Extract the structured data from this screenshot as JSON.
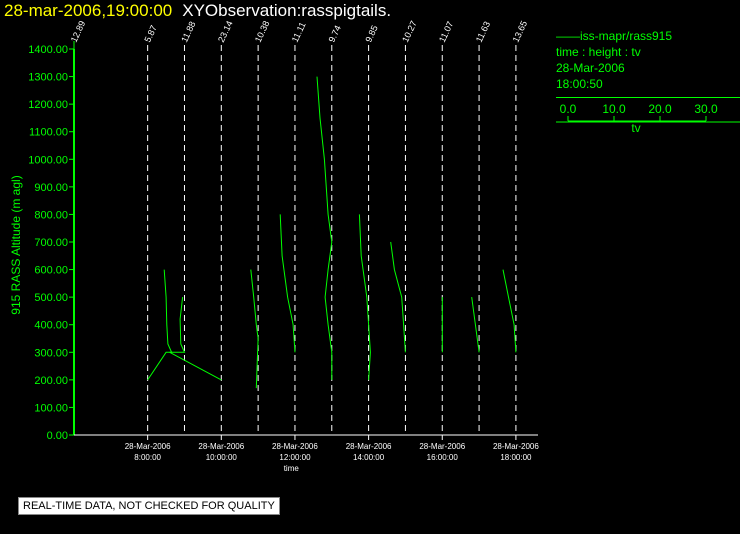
{
  "header": {
    "timestamp": "28-mar-2006,19:00:00",
    "name": "XYObservation:rasspigtails."
  },
  "legend": {
    "series_label": "iss-mapr/rass915",
    "line1": "time : height : tv",
    "line2": "28-Mar-2006",
    "line3": "18:00:50",
    "scale_ticks": [
      "0.0",
      "10.0",
      "20.0",
      "30.0"
    ],
    "scale_label": "tv",
    "color": "#00ff00"
  },
  "disclaimer": "REAL-TIME DATA, NOT CHECKED FOR QUALITY",
  "chart_data": {
    "type": "line",
    "ylabel": "915 RASS Altitude (m agl)",
    "xlabel": "time",
    "ylim": [
      0,
      1400
    ],
    "yticks": [
      "0.00",
      "100.00",
      "200.00",
      "300.00",
      "400.00",
      "500.00",
      "600.00",
      "700.00",
      "800.00",
      "900.00",
      "1000.00",
      "1100.00",
      "1200.00",
      "1300.00",
      "1400.00"
    ],
    "xlim_hours": [
      6.0,
      18.6
    ],
    "xticks": [
      {
        "hour": 8,
        "date": "28-Mar-2006",
        "time": "8:00:00"
      },
      {
        "hour": 10,
        "date": "28-Mar-2006",
        "time": "10:00:00"
      },
      {
        "hour": 12,
        "date": "28-Mar-2006",
        "time": "12:00:00"
      },
      {
        "hour": 14,
        "date": "28-Mar-2006",
        "time": "14:00:00"
      },
      {
        "hour": 16,
        "date": "28-Mar-2006",
        "time": "16:00:00"
      },
      {
        "hour": 18,
        "date": "28-Mar-2006",
        "time": "18:00:00"
      }
    ],
    "profiles": [
      {
        "hour": 6.0,
        "label": "12.89",
        "points": [
          [
            6.0,
            0
          ],
          [
            6.0,
            1400
          ]
        ]
      },
      {
        "hour": 8.0,
        "label": "5.87",
        "points": [
          [
            8.45,
            600
          ],
          [
            8.5,
            500
          ],
          [
            8.52,
            400
          ],
          [
            8.55,
            330
          ],
          [
            8.65,
            300
          ],
          [
            8.5,
            300
          ],
          [
            8.0,
            200
          ],
          [
            8.0,
            200
          ]
        ]
      },
      {
        "hour": 9.0,
        "label": "11.88",
        "points": [
          [
            8.95,
            500
          ],
          [
            8.88,
            420
          ],
          [
            8.9,
            330
          ],
          [
            9.0,
            300
          ],
          [
            8.6,
            300
          ],
          [
            10.0,
            200
          ]
        ]
      },
      {
        "hour": 10.0,
        "label": "23.14",
        "points": [
          [
            10.0,
            200
          ],
          [
            10.0,
            200
          ]
        ]
      },
      {
        "hour": 11.0,
        "label": "10.38",
        "points": [
          [
            10.8,
            600
          ],
          [
            10.88,
            500
          ],
          [
            10.95,
            400
          ],
          [
            11.0,
            350
          ],
          [
            10.95,
            170
          ]
        ]
      },
      {
        "hour": 12.0,
        "label": "11.11",
        "points": [
          [
            11.6,
            800
          ],
          [
            11.65,
            650
          ],
          [
            11.8,
            500
          ],
          [
            11.95,
            400
          ],
          [
            12.0,
            300
          ]
        ]
      },
      {
        "hour": 13.0,
        "label": "9.74",
        "points": [
          [
            12.6,
            1300
          ],
          [
            12.68,
            1150
          ],
          [
            12.8,
            1000
          ],
          [
            12.9,
            800
          ],
          [
            13.0,
            700
          ],
          [
            12.9,
            600
          ],
          [
            12.82,
            500
          ],
          [
            12.9,
            400
          ],
          [
            13.0,
            300
          ],
          [
            13.0,
            200
          ]
        ]
      },
      {
        "hour": 14.0,
        "label": "9.85",
        "points": [
          [
            13.75,
            800
          ],
          [
            13.8,
            650
          ],
          [
            13.95,
            500
          ],
          [
            14.0,
            400
          ],
          [
            14.05,
            300
          ],
          [
            14.0,
            200
          ]
        ]
      },
      {
        "hour": 15.0,
        "label": "10.27",
        "points": [
          [
            14.6,
            700
          ],
          [
            14.7,
            600
          ],
          [
            14.9,
            500
          ],
          [
            14.95,
            400
          ],
          [
            15.0,
            300
          ]
        ]
      },
      {
        "hour": 16.0,
        "label": "11.07",
        "points": [
          [
            16.0,
            500
          ],
          [
            16.0,
            400
          ],
          [
            16.0,
            300
          ]
        ]
      },
      {
        "hour": 17.0,
        "label": "11.63",
        "points": [
          [
            16.8,
            500
          ],
          [
            16.9,
            400
          ],
          [
            17.0,
            300
          ]
        ]
      },
      {
        "hour": 18.0,
        "label": "13.65",
        "points": [
          [
            17.65,
            600
          ],
          [
            17.8,
            500
          ],
          [
            17.95,
            400
          ],
          [
            18.0,
            300
          ]
        ]
      }
    ],
    "grid": false,
    "line_color": "#00ff00"
  }
}
